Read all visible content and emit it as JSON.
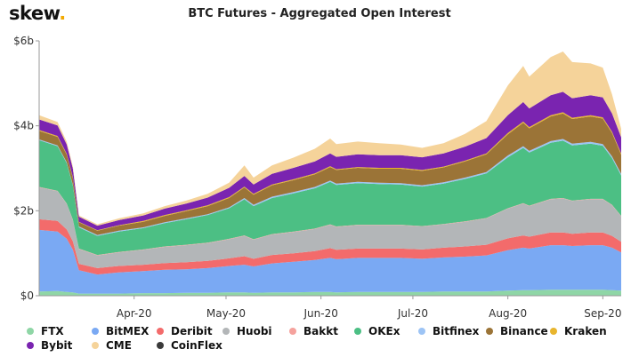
{
  "brand": {
    "name": "skew",
    "dot": "."
  },
  "chart_data": {
    "type": "area",
    "stacked": true,
    "title": "BTC Futures - Aggregated Open Interest",
    "xlabel": "",
    "ylabel": "",
    "y_unit": "USD",
    "ylim": [
      0,
      6000000000
    ],
    "y_ticks": [
      0,
      2000000000,
      4000000000,
      6000000000
    ],
    "y_tick_labels": [
      "$0",
      "$2b",
      "$4b",
      "$6b"
    ],
    "x_range": [
      "2020-03-01",
      "2020-09-07"
    ],
    "x_ticks": [
      "2020-04-01",
      "2020-05-01",
      "2020-06-01",
      "2020-07-01",
      "2020-08-01",
      "2020-09-01"
    ],
    "x_tick_labels": [
      "Apr-20",
      "May-20",
      "Jun-20",
      "Jul-20",
      "Aug-20",
      "Sep-20"
    ],
    "grid": false,
    "legend_position": "bottom",
    "dates": [
      "2020-03-01",
      "2020-03-07",
      "2020-03-10",
      "2020-03-12",
      "2020-03-14",
      "2020-03-20",
      "2020-03-27",
      "2020-04-04",
      "2020-04-11",
      "2020-04-18",
      "2020-04-25",
      "2020-05-02",
      "2020-05-07",
      "2020-05-10",
      "2020-05-16",
      "2020-05-23",
      "2020-05-30",
      "2020-06-04",
      "2020-06-06",
      "2020-06-13",
      "2020-06-20",
      "2020-06-27",
      "2020-07-04",
      "2020-07-11",
      "2020-07-18",
      "2020-07-25",
      "2020-08-01",
      "2020-08-06",
      "2020-08-08",
      "2020-08-15",
      "2020-08-19",
      "2020-08-22",
      "2020-08-28",
      "2020-09-01",
      "2020-09-04",
      "2020-09-07"
    ],
    "series": [
      {
        "name": "FTX",
        "color": "#8fd6a6",
        "values": [
          0.1,
          0.11,
          0.09,
          0.08,
          0.05,
          0.05,
          0.05,
          0.06,
          0.06,
          0.07,
          0.07,
          0.08,
          0.08,
          0.07,
          0.08,
          0.08,
          0.09,
          0.09,
          0.08,
          0.09,
          0.09,
          0.09,
          0.09,
          0.1,
          0.1,
          0.1,
          0.12,
          0.13,
          0.13,
          0.14,
          0.14,
          0.14,
          0.14,
          0.14,
          0.13,
          0.12
        ]
      },
      {
        "name": "BitMEX",
        "color": "#7aa9f3",
        "values": [
          1.45,
          1.4,
          1.25,
          1.0,
          0.55,
          0.45,
          0.5,
          0.52,
          0.55,
          0.55,
          0.58,
          0.62,
          0.65,
          0.62,
          0.68,
          0.72,
          0.75,
          0.8,
          0.78,
          0.8,
          0.8,
          0.8,
          0.78,
          0.8,
          0.82,
          0.85,
          0.95,
          1.0,
          0.98,
          1.05,
          1.05,
          1.03,
          1.05,
          1.05,
          1.0,
          0.9
        ]
      },
      {
        "name": "Deribit",
        "color": "#f36b6b",
        "values": [
          0.25,
          0.25,
          0.22,
          0.2,
          0.15,
          0.15,
          0.15,
          0.15,
          0.16,
          0.17,
          0.17,
          0.18,
          0.2,
          0.18,
          0.2,
          0.2,
          0.21,
          0.23,
          0.22,
          0.22,
          0.22,
          0.22,
          0.22,
          0.23,
          0.24,
          0.25,
          0.28,
          0.29,
          0.28,
          0.3,
          0.3,
          0.29,
          0.3,
          0.3,
          0.28,
          0.25
        ]
      },
      {
        "name": "Huobi",
        "color": "#b3b6b8",
        "values": [
          0.75,
          0.7,
          0.6,
          0.5,
          0.35,
          0.3,
          0.32,
          0.35,
          0.38,
          0.4,
          0.42,
          0.45,
          0.48,
          0.45,
          0.48,
          0.5,
          0.52,
          0.55,
          0.54,
          0.55,
          0.55,
          0.55,
          0.54,
          0.55,
          0.58,
          0.62,
          0.7,
          0.75,
          0.72,
          0.78,
          0.8,
          0.77,
          0.78,
          0.78,
          0.72,
          0.6
        ]
      },
      {
        "name": "Bakkt",
        "color": "#f5a29d",
        "values": [
          0.01,
          0.01,
          0.01,
          0.01,
          0.01,
          0.01,
          0.01,
          0.01,
          0.01,
          0.01,
          0.01,
          0.01,
          0.01,
          0.01,
          0.01,
          0.01,
          0.01,
          0.01,
          0.01,
          0.01,
          0.01,
          0.01,
          0.01,
          0.01,
          0.01,
          0.01,
          0.01,
          0.01,
          0.01,
          0.01,
          0.01,
          0.01,
          0.01,
          0.01,
          0.01,
          0.01
        ]
      },
      {
        "name": "OKEx",
        "color": "#4cbf84",
        "values": [
          1.1,
          1.05,
          0.95,
          0.8,
          0.5,
          0.45,
          0.48,
          0.5,
          0.55,
          0.6,
          0.65,
          0.72,
          0.85,
          0.78,
          0.85,
          0.9,
          0.95,
          1.0,
          0.98,
          0.98,
          0.96,
          0.95,
          0.93,
          0.95,
          1.0,
          1.05,
          1.2,
          1.3,
          1.25,
          1.32,
          1.35,
          1.3,
          1.3,
          1.25,
          1.1,
          0.95
        ]
      },
      {
        "name": "Bitfinex",
        "color": "#9dc4f5",
        "values": [
          0.02,
          0.02,
          0.02,
          0.02,
          0.02,
          0.02,
          0.02,
          0.02,
          0.02,
          0.02,
          0.02,
          0.02,
          0.03,
          0.03,
          0.03,
          0.03,
          0.03,
          0.03,
          0.03,
          0.03,
          0.03,
          0.03,
          0.03,
          0.03,
          0.03,
          0.03,
          0.04,
          0.04,
          0.04,
          0.04,
          0.04,
          0.04,
          0.04,
          0.04,
          0.04,
          0.04
        ]
      },
      {
        "name": "Binance",
        "color": "#9b7437",
        "values": [
          0.2,
          0.2,
          0.18,
          0.16,
          0.1,
          0.1,
          0.12,
          0.13,
          0.15,
          0.17,
          0.19,
          0.22,
          0.25,
          0.24,
          0.27,
          0.28,
          0.3,
          0.32,
          0.32,
          0.33,
          0.33,
          0.34,
          0.34,
          0.35,
          0.38,
          0.42,
          0.5,
          0.55,
          0.53,
          0.58,
          0.6,
          0.58,
          0.6,
          0.6,
          0.55,
          0.45
        ]
      },
      {
        "name": "Kraken",
        "color": "#e8b52e",
        "values": [
          0.02,
          0.02,
          0.02,
          0.02,
          0.01,
          0.01,
          0.01,
          0.02,
          0.02,
          0.02,
          0.02,
          0.02,
          0.02,
          0.02,
          0.02,
          0.02,
          0.02,
          0.02,
          0.02,
          0.02,
          0.02,
          0.02,
          0.02,
          0.02,
          0.02,
          0.02,
          0.03,
          0.03,
          0.03,
          0.03,
          0.03,
          0.03,
          0.03,
          0.03,
          0.03,
          0.03
        ]
      },
      {
        "name": "Bybit",
        "color": "#7a24b0",
        "values": [
          0.25,
          0.25,
          0.22,
          0.2,
          0.12,
          0.11,
          0.12,
          0.13,
          0.15,
          0.16,
          0.18,
          0.22,
          0.25,
          0.22,
          0.25,
          0.27,
          0.28,
          0.3,
          0.29,
          0.3,
          0.3,
          0.3,
          0.3,
          0.31,
          0.33,
          0.36,
          0.42,
          0.46,
          0.44,
          0.47,
          0.48,
          0.46,
          0.47,
          0.47,
          0.43,
          0.38
        ]
      },
      {
        "name": "CME",
        "color": "#f5d39a",
        "values": [
          0.1,
          0.08,
          0.06,
          0.05,
          0.03,
          0.03,
          0.04,
          0.05,
          0.06,
          0.07,
          0.09,
          0.12,
          0.25,
          0.16,
          0.2,
          0.24,
          0.3,
          0.35,
          0.3,
          0.3,
          0.28,
          0.25,
          0.22,
          0.24,
          0.3,
          0.4,
          0.7,
          0.85,
          0.75,
          0.9,
          0.95,
          0.85,
          0.75,
          0.7,
          0.45,
          0.2
        ]
      },
      {
        "name": "CoinFlex",
        "color": "#3a3a3a",
        "values": [
          0,
          0,
          0,
          0,
          0,
          0,
          0,
          0,
          0,
          0,
          0,
          0,
          0,
          0,
          0,
          0,
          0,
          0,
          0,
          0,
          0,
          0,
          0,
          0,
          0,
          0,
          0,
          0,
          0,
          0,
          0,
          0,
          0,
          0,
          0,
          0
        ]
      }
    ]
  }
}
